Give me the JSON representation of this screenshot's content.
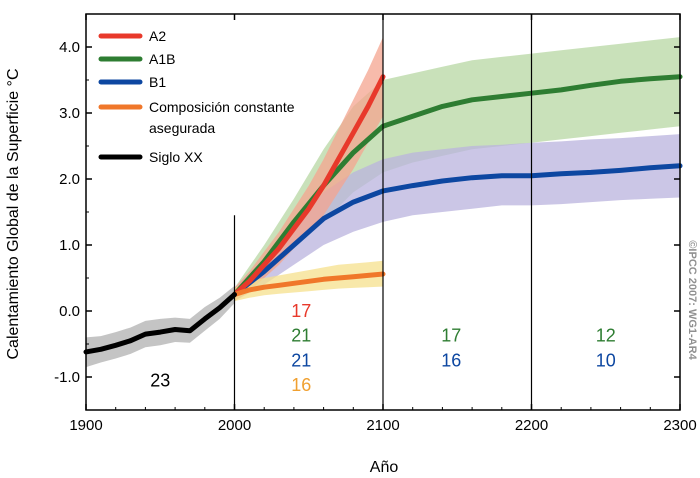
{
  "chart_data": {
    "type": "line",
    "title": "",
    "xlabel": "Año",
    "ylabel": "Calentamiento Global de la Superficie °C",
    "xlim": [
      1900,
      2300
    ],
    "ylim": [
      -1.5,
      4.5
    ],
    "xticks": [
      1900,
      2000,
      2100,
      2200,
      2300
    ],
    "xtick_labels": [
      "1900",
      "2000",
      "2100",
      "2200",
      "2300"
    ],
    "yticks": [
      -1.0,
      0.0,
      1.0,
      2.0,
      3.0,
      4.0
    ],
    "ytick_labels": [
      "-1.0",
      "0.0",
      "1.0",
      "2.0",
      "3.0",
      "4.0"
    ],
    "vlines": [
      2000,
      2100,
      2200
    ],
    "legend_position": "top-left",
    "series": [
      {
        "name": "A2",
        "color": "#e8392b",
        "band_color": "#f4a48f",
        "x": [
          2000,
          2010,
          2020,
          2030,
          2040,
          2050,
          2060,
          2070,
          2080,
          2090,
          2100
        ],
        "values": [
          0.25,
          0.45,
          0.7,
          0.95,
          1.25,
          1.55,
          1.9,
          2.3,
          2.7,
          3.1,
          3.55
        ],
        "band_low": [
          0.15,
          0.3,
          0.5,
          0.7,
          0.95,
          1.2,
          1.45,
          1.8,
          2.15,
          2.55,
          2.95
        ],
        "band_high": [
          0.35,
          0.6,
          0.9,
          1.2,
          1.55,
          1.9,
          2.3,
          2.75,
          3.2,
          3.65,
          4.15
        ]
      },
      {
        "name": "A1B",
        "color": "#2e7d32",
        "band_color": "#b7d7a3",
        "x": [
          2000,
          2020,
          2040,
          2060,
          2080,
          2100,
          2120,
          2140,
          2160,
          2180,
          2200,
          2220,
          2240,
          2260,
          2280,
          2300
        ],
        "values": [
          0.25,
          0.75,
          1.35,
          1.9,
          2.4,
          2.8,
          2.95,
          3.1,
          3.2,
          3.25,
          3.3,
          3.35,
          3.42,
          3.48,
          3.52,
          3.55
        ],
        "band_low": [
          0.15,
          0.5,
          0.95,
          1.35,
          1.8,
          2.1,
          2.25,
          2.35,
          2.45,
          2.5,
          2.55,
          2.6,
          2.65,
          2.7,
          2.75,
          2.8
        ],
        "band_high": [
          0.35,
          1.0,
          1.7,
          2.45,
          3.1,
          3.5,
          3.6,
          3.7,
          3.8,
          3.85,
          3.9,
          3.95,
          4.0,
          4.05,
          4.1,
          4.15
        ]
      },
      {
        "name": "B1",
        "color": "#0d47a1",
        "band_color": "#b9b3dd",
        "x": [
          2000,
          2020,
          2040,
          2060,
          2080,
          2100,
          2120,
          2140,
          2160,
          2180,
          2200,
          2220,
          2240,
          2260,
          2280,
          2300
        ],
        "values": [
          0.25,
          0.6,
          1.0,
          1.4,
          1.65,
          1.82,
          1.9,
          1.97,
          2.02,
          2.05,
          2.05,
          2.08,
          2.1,
          2.13,
          2.17,
          2.2
        ],
        "band_low": [
          0.15,
          0.4,
          0.7,
          1.0,
          1.2,
          1.35,
          1.45,
          1.5,
          1.55,
          1.6,
          1.6,
          1.62,
          1.65,
          1.68,
          1.7,
          1.72
        ],
        "band_high": [
          0.35,
          0.8,
          1.3,
          1.8,
          2.1,
          2.3,
          2.4,
          2.45,
          2.5,
          2.52,
          2.55,
          2.57,
          2.6,
          2.62,
          2.65,
          2.68
        ]
      },
      {
        "name": "Composición constante asegurada",
        "legend_lines": [
          "Composición constante",
          "asegurada"
        ],
        "color": "#f0772a",
        "band_color": "#f6e08c",
        "x": [
          2000,
          2010,
          2020,
          2030,
          2040,
          2050,
          2060,
          2070,
          2080,
          2090,
          2100
        ],
        "values": [
          0.25,
          0.32,
          0.36,
          0.39,
          0.42,
          0.45,
          0.48,
          0.5,
          0.52,
          0.54,
          0.56
        ],
        "band_low": [
          0.15,
          0.2,
          0.24,
          0.26,
          0.28,
          0.3,
          0.32,
          0.34,
          0.35,
          0.36,
          0.37
        ],
        "band_high": [
          0.35,
          0.45,
          0.5,
          0.54,
          0.58,
          0.62,
          0.66,
          0.7,
          0.72,
          0.74,
          0.76
        ]
      },
      {
        "name": "Siglo XX",
        "color": "#000000",
        "band_color": "#b0b0b0",
        "x": [
          1900,
          1910,
          1920,
          1930,
          1940,
          1950,
          1960,
          1970,
          1980,
          1990,
          2000
        ],
        "values": [
          -0.62,
          -0.58,
          -0.52,
          -0.45,
          -0.35,
          -0.32,
          -0.28,
          -0.3,
          -0.12,
          0.05,
          0.25
        ],
        "band_low": [
          -0.85,
          -0.78,
          -0.72,
          -0.65,
          -0.55,
          -0.52,
          -0.47,
          -0.48,
          -0.3,
          -0.12,
          0.12
        ],
        "band_high": [
          -0.4,
          -0.38,
          -0.32,
          -0.25,
          -0.15,
          -0.12,
          -0.1,
          -0.12,
          0.06,
          0.2,
          0.38
        ]
      }
    ],
    "model_counts": [
      {
        "x": 1950,
        "y": -1.05,
        "text": "23",
        "color": "#000000"
      },
      {
        "x": 2045,
        "y": 0.0,
        "text": "17",
        "color": "#e8392b"
      },
      {
        "x": 2045,
        "y": -0.37,
        "text": "21",
        "color": "#2e7d32"
      },
      {
        "x": 2045,
        "y": -0.75,
        "text": "21",
        "color": "#0d47a1"
      },
      {
        "x": 2045,
        "y": -1.12,
        "text": "16",
        "color": "#f0a030"
      },
      {
        "x": 2146,
        "y": -0.37,
        "text": "17",
        "color": "#2e7d32"
      },
      {
        "x": 2146,
        "y": -0.75,
        "text": "16",
        "color": "#0d47a1"
      },
      {
        "x": 2250,
        "y": -0.37,
        "text": "12",
        "color": "#2e7d32"
      },
      {
        "x": 2250,
        "y": -0.75,
        "text": "10",
        "color": "#0d47a1"
      }
    ],
    "copyright": "©IPCC 2007: WG1-AR4"
  }
}
